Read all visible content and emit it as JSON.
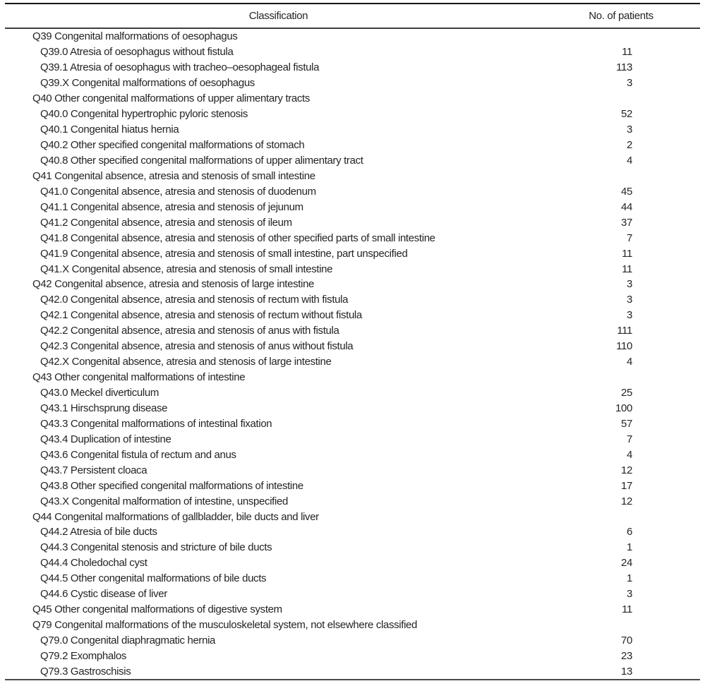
{
  "table": {
    "headers": {
      "classification": "Classification",
      "patients": "No. of patients"
    },
    "rows": [
      {
        "label": "Q39 Congenital malformations of oesophagus",
        "value": null,
        "level": 0
      },
      {
        "label": "Q39.0 Atresia of oesophagus without fistula",
        "value": 11,
        "level": 1
      },
      {
        "label": "Q39.1 Atresia of oesophagus with tracheo–oesophageal fistula",
        "value": 113,
        "level": 1
      },
      {
        "label": "Q39.X Congenital malformations of oesophagus",
        "value": 3,
        "level": 1
      },
      {
        "label": "Q40 Other congenital malformations of upper alimentary tracts",
        "value": null,
        "level": 0
      },
      {
        "label": "Q40.0 Congenital hypertrophic pyloric stenosis",
        "value": 52,
        "level": 1
      },
      {
        "label": "Q40.1 Congenital hiatus hernia",
        "value": 3,
        "level": 1
      },
      {
        "label": "Q40.2 Other specified congenital malformations of stomach",
        "value": 2,
        "level": 1
      },
      {
        "label": "Q40.8 Other specified congenital malformations of upper alimentary tract",
        "value": 4,
        "level": 1
      },
      {
        "label": "Q41 Congenital absence, atresia and stenosis of small intestine",
        "value": null,
        "level": 0
      },
      {
        "label": "Q41.0 Congenital absence, atresia and stenosis of duodenum",
        "value": 45,
        "level": 1
      },
      {
        "label": "Q41.1 Congenital absence, atresia and stenosis of jejunum",
        "value": 44,
        "level": 1
      },
      {
        "label": "Q41.2 Congenital absence, atresia and stenosis of ileum",
        "value": 37,
        "level": 1
      },
      {
        "label": "Q41.8 Congenital absence, atresia and stenosis of other specified parts of small intestine",
        "value": 7,
        "level": 1
      },
      {
        "label": "Q41.9 Congenital absence, atresia and stenosis of small intestine, part unspecified",
        "value": 11,
        "level": 1
      },
      {
        "label": "Q41.X Congenital absence, atresia and stenosis of small intestine",
        "value": 11,
        "level": 1
      },
      {
        "label": "Q42 Congenital absence, atresia and stenosis of large intestine",
        "value": 3,
        "level": 0
      },
      {
        "label": "Q42.0 Congenital absence, atresia and stenosis of rectum with fistula",
        "value": 3,
        "level": 1
      },
      {
        "label": "Q42.1 Congenital absence, atresia and stenosis of rectum without fistula",
        "value": 3,
        "level": 1
      },
      {
        "label": "Q42.2 Congenital absence, atresia and stenosis of anus with fistula",
        "value": 111,
        "level": 1
      },
      {
        "label": "Q42.3 Congenital absence, atresia and stenosis of anus without fistula",
        "value": 110,
        "level": 1
      },
      {
        "label": "Q42.X Congenital absence, atresia and stenosis of large intestine",
        "value": 4,
        "level": 1
      },
      {
        "label": "Q43 Other congenital malformations of intestine",
        "value": null,
        "level": 0
      },
      {
        "label": "Q43.0 Meckel diverticulum",
        "value": 25,
        "level": 1
      },
      {
        "label": "Q43.1 Hirschsprung disease",
        "value": 100,
        "level": 1
      },
      {
        "label": "Q43.3 Congenital malformations of intestinal fixation",
        "value": 57,
        "level": 1
      },
      {
        "label": "Q43.4 Duplication of intestine",
        "value": 7,
        "level": 1
      },
      {
        "label": "Q43.6 Congenital fistula of rectum and anus",
        "value": 4,
        "level": 1
      },
      {
        "label": "Q43.7 Persistent cloaca",
        "value": 12,
        "level": 1
      },
      {
        "label": "Q43.8 Other specified congenital malformations of intestine",
        "value": 17,
        "level": 1
      },
      {
        "label": "Q43.X Congenital malformation of intestine, unspecified",
        "value": 12,
        "level": 1
      },
      {
        "label": "Q44 Congenital malformations of gallbladder, bile ducts and liver",
        "value": null,
        "level": 0
      },
      {
        "label": "Q44.2 Atresia of bile ducts",
        "value": 6,
        "level": 1
      },
      {
        "label": "Q44.3 Congenital stenosis and stricture of bile ducts",
        "value": 1,
        "level": 1
      },
      {
        "label": "Q44.4 Choledochal cyst",
        "value": 24,
        "level": 1
      },
      {
        "label": "Q44.5 Other congenital malformations of bile ducts",
        "value": 1,
        "level": 1
      },
      {
        "label": "Q44.6 Cystic disease of liver",
        "value": 3,
        "level": 1
      },
      {
        "label": "Q45 Other congenital malformations of digestive system",
        "value": 11,
        "level": 0
      },
      {
        "label": "Q79 Congenital malformations of the musculoskeletal system, not elsewhere classified",
        "value": null,
        "level": 0
      },
      {
        "label": "Q79.0 Congenital diaphragmatic hernia",
        "value": 70,
        "level": 1
      },
      {
        "label": "Q79.2 Exomphalos",
        "value": 23,
        "level": 1
      },
      {
        "label": "Q79.3 Gastroschisis",
        "value": 13,
        "level": 1
      }
    ]
  },
  "colors": {
    "text": "#242424",
    "rule_top": "#141414",
    "rule_mid": "#3d3d42",
    "rule_bottom": "#4a4a50"
  }
}
